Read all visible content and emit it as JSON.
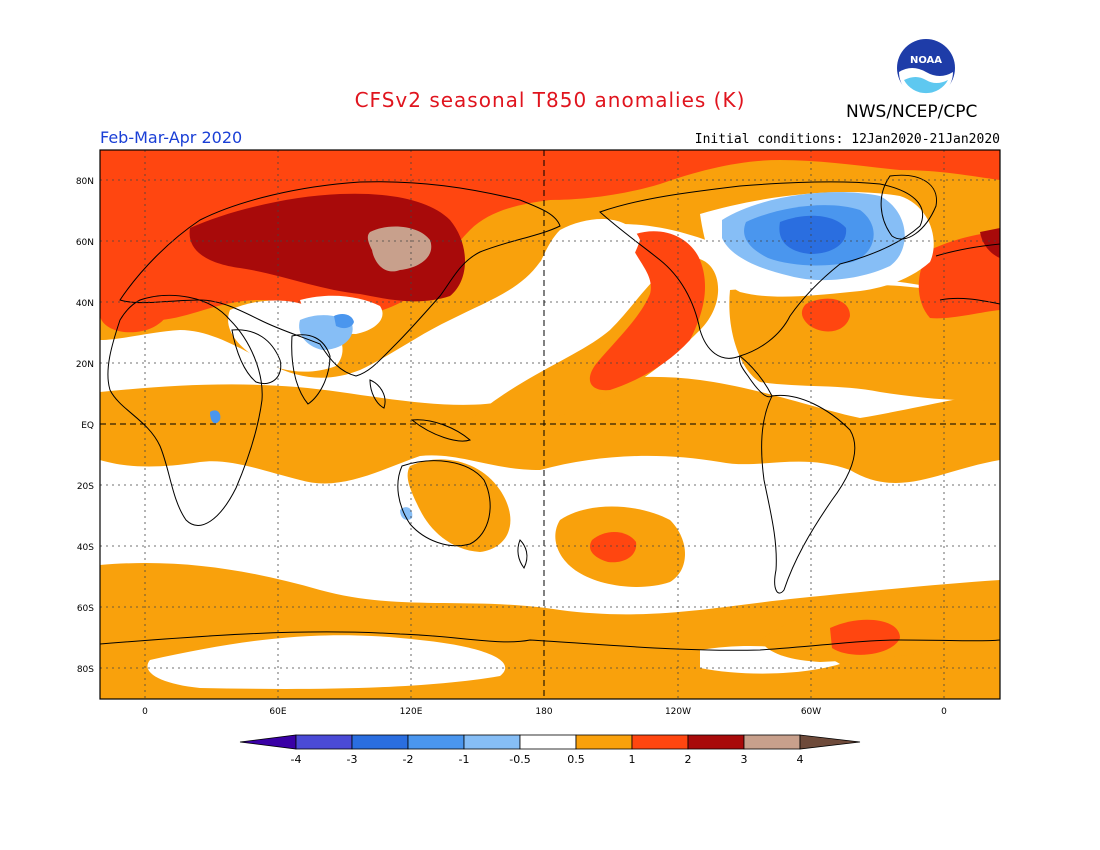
{
  "title": "CFSv2 seasonal T850 anomalies (K)",
  "agency": "NWS/NCEP/CPC",
  "logo_text": "NOAA",
  "period": "Feb-Mar-Apr 2020",
  "initial_conditions": "Initial conditions: 12Jan2020-21Jan2020",
  "lat_labels": [
    "80N",
    "60N",
    "40N",
    "20N",
    "EQ",
    "20S",
    "40S",
    "60S",
    "80S"
  ],
  "lon_labels": [
    "0",
    "60E",
    "120E",
    "180",
    "120W",
    "60W",
    "0"
  ],
  "colorbar": {
    "levels": [
      "-4",
      "-3",
      "-2",
      "-1",
      "-0.5",
      "0.5",
      "1",
      "2",
      "3",
      "4"
    ],
    "colors": [
      "#3a00a6",
      "#4a4ad6",
      "#2a6ee0",
      "#4a96ee",
      "#86bef6",
      "#ffffff",
      "#f9a10c",
      "#ff4610",
      "#a80a0a",
      "#c8a08c",
      "#6e4a3a"
    ]
  },
  "palette": {
    "warm_05_1": "#f9a10c",
    "warm_1_2": "#ff4610",
    "warm_2_3": "#a80a0a",
    "warm_3_4": "#c8a08c",
    "cool_05_1": "#86bef6",
    "cool_1_2": "#4a96ee",
    "cool_2_3": "#2a6ee0"
  }
}
